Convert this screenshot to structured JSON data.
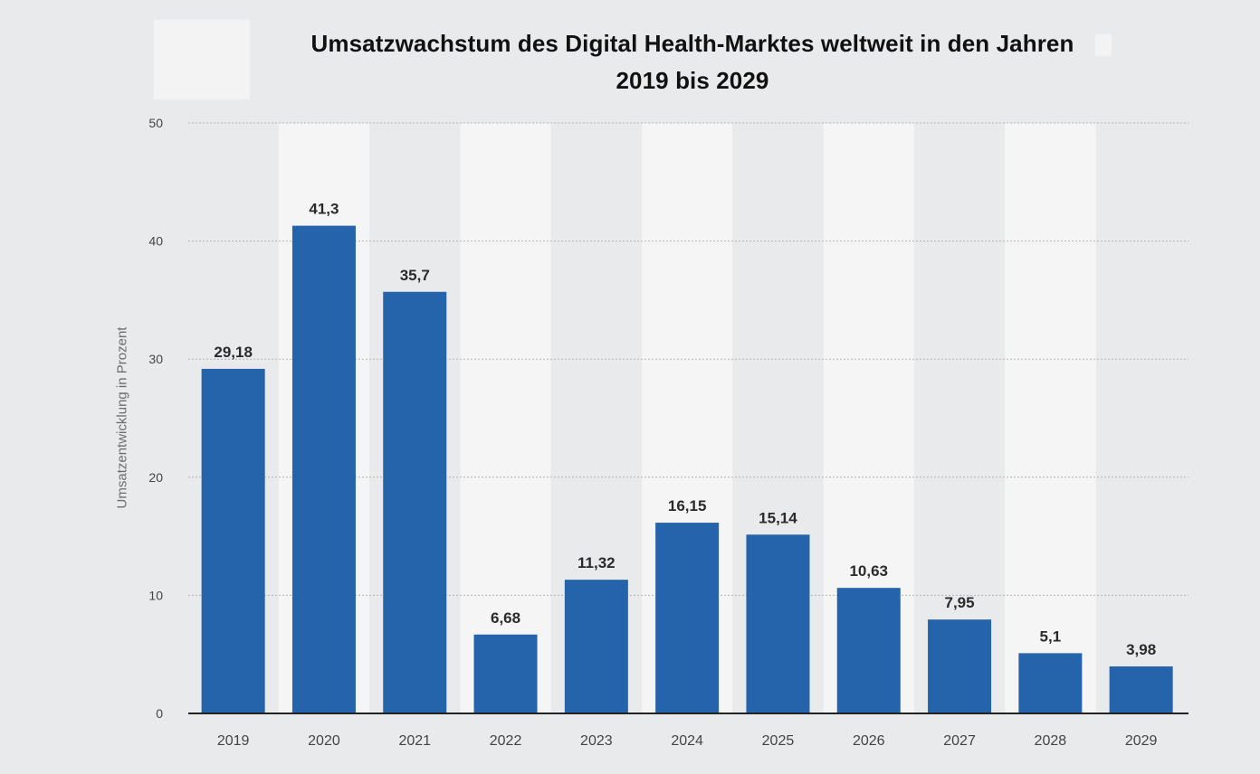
{
  "chart_data": {
    "type": "bar",
    "title": "Umsatzwachstum des Digital Health-Marktes weltweit in den Jahren 2019 bis 2029",
    "title_lines": [
      "Umsatzwachstum des Digital Health-Marktes weltweit in den Jahren",
      "2019 bis 2029"
    ],
    "xlabel": "",
    "ylabel": "Umsatzentwicklung in Prozent",
    "categories": [
      "2019",
      "2020",
      "2021",
      "2022",
      "2023",
      "2024",
      "2025",
      "2026",
      "2027",
      "2028",
      "2029"
    ],
    "values": [
      29.18,
      41.3,
      35.7,
      6.68,
      11.32,
      16.15,
      15.14,
      10.63,
      7.95,
      5.1,
      3.98
    ],
    "value_labels": [
      "29,18",
      "41,3",
      "35,7",
      "6,68",
      "11,32",
      "16,15",
      "15,14",
      "10,63",
      "7,95",
      "5,1",
      "3,98"
    ],
    "yticks": [
      0,
      10,
      20,
      30,
      40,
      50
    ],
    "ylim": [
      0,
      50
    ],
    "grid": true,
    "legend": "none",
    "colors": {
      "bar": "#2563ab",
      "band_light": "#f5f5f5",
      "band_dark": "#e9eaeb",
      "grid": "#b4b4b4",
      "axis": "#222222"
    }
  }
}
